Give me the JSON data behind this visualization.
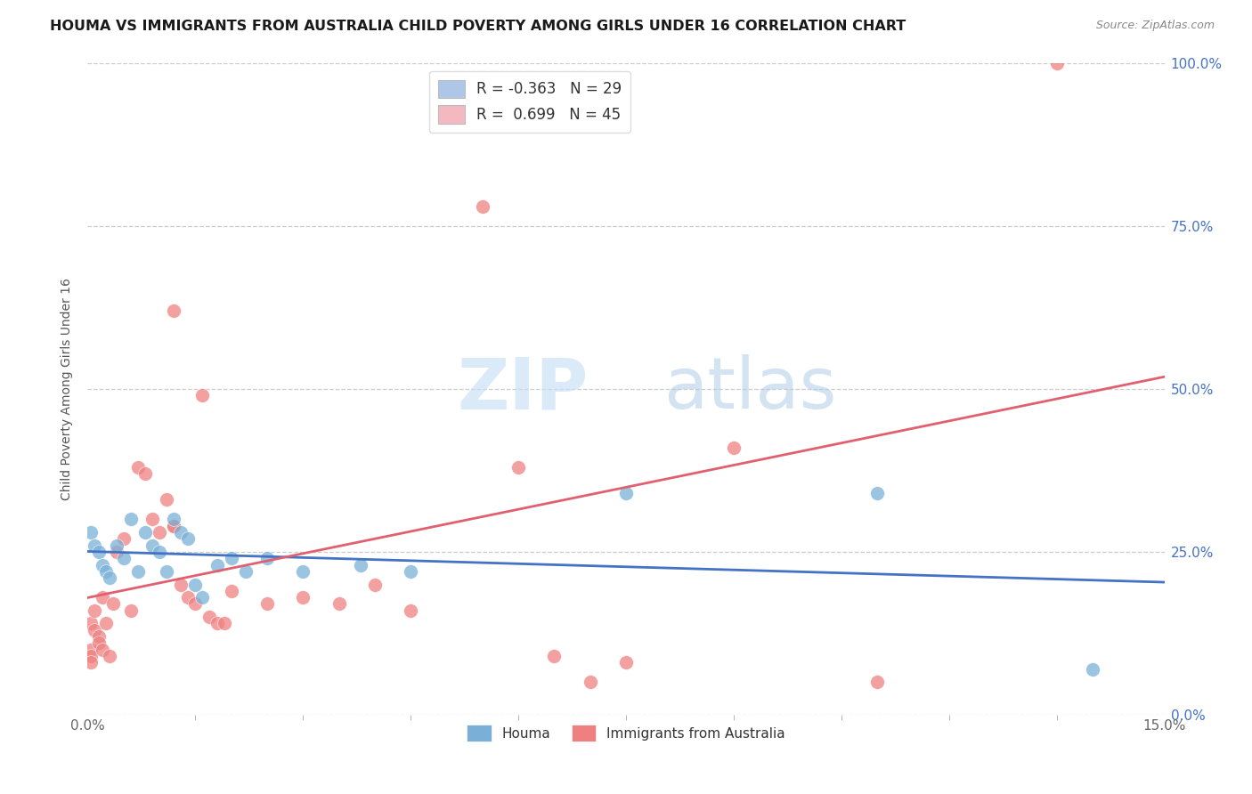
{
  "title": "HOUMA VS IMMIGRANTS FROM AUSTRALIA CHILD POVERTY AMONG GIRLS UNDER 16 CORRELATION CHART",
  "source": "Source: ZipAtlas.com",
  "ylabel": "Child Poverty Among Girls Under 16",
  "xmin": 0.0,
  "xmax": 15.0,
  "ymin": 0.0,
  "ymax": 100.0,
  "watermark_zip": "ZIP",
  "watermark_atlas": "atlas",
  "legend_entries": [
    {
      "label_r": "R = -0.363",
      "label_n": "N = 29",
      "color": "#aec6e8"
    },
    {
      "label_r": "R =  0.699",
      "label_n": "N = 45",
      "color": "#f4b8c1"
    }
  ],
  "houma_color": "#7ab0d8",
  "immigrants_color": "#f08080",
  "houma_line_color": "#4472c4",
  "immigrants_line_color": "#e06070",
  "houma_points": [
    [
      0.05,
      28.0
    ],
    [
      0.1,
      26.0
    ],
    [
      0.15,
      25.0
    ],
    [
      0.2,
      23.0
    ],
    [
      0.25,
      22.0
    ],
    [
      0.3,
      21.0
    ],
    [
      0.4,
      26.0
    ],
    [
      0.5,
      24.0
    ],
    [
      0.6,
      30.0
    ],
    [
      0.7,
      22.0
    ],
    [
      0.8,
      28.0
    ],
    [
      0.9,
      26.0
    ],
    [
      1.0,
      25.0
    ],
    [
      1.1,
      22.0
    ],
    [
      1.2,
      30.0
    ],
    [
      1.3,
      28.0
    ],
    [
      1.4,
      27.0
    ],
    [
      1.5,
      20.0
    ],
    [
      1.6,
      18.0
    ],
    [
      1.8,
      23.0
    ],
    [
      2.0,
      24.0
    ],
    [
      2.2,
      22.0
    ],
    [
      2.5,
      24.0
    ],
    [
      3.0,
      22.0
    ],
    [
      3.8,
      23.0
    ],
    [
      4.5,
      22.0
    ],
    [
      7.5,
      34.0
    ],
    [
      11.0,
      34.0
    ],
    [
      14.0,
      7.0
    ]
  ],
  "immigrants_points": [
    [
      0.05,
      10.0
    ],
    [
      0.05,
      9.0
    ],
    [
      0.05,
      8.0
    ],
    [
      0.05,
      14.0
    ],
    [
      0.1,
      13.0
    ],
    [
      0.1,
      16.0
    ],
    [
      0.15,
      12.0
    ],
    [
      0.15,
      11.0
    ],
    [
      0.2,
      18.0
    ],
    [
      0.2,
      10.0
    ],
    [
      0.25,
      14.0
    ],
    [
      0.3,
      9.0
    ],
    [
      0.35,
      17.0
    ],
    [
      0.4,
      25.0
    ],
    [
      0.5,
      27.0
    ],
    [
      0.6,
      16.0
    ],
    [
      0.7,
      38.0
    ],
    [
      0.8,
      37.0
    ],
    [
      0.9,
      30.0
    ],
    [
      1.0,
      28.0
    ],
    [
      1.1,
      33.0
    ],
    [
      1.2,
      29.0
    ],
    [
      1.2,
      29.0
    ],
    [
      1.2,
      62.0
    ],
    [
      1.3,
      20.0
    ],
    [
      1.4,
      18.0
    ],
    [
      1.5,
      17.0
    ],
    [
      1.6,
      49.0
    ],
    [
      1.7,
      15.0
    ],
    [
      1.8,
      14.0
    ],
    [
      1.9,
      14.0
    ],
    [
      2.0,
      19.0
    ],
    [
      2.5,
      17.0
    ],
    [
      3.0,
      18.0
    ],
    [
      3.5,
      17.0
    ],
    [
      4.0,
      20.0
    ],
    [
      4.5,
      16.0
    ],
    [
      5.5,
      78.0
    ],
    [
      6.0,
      38.0
    ],
    [
      6.5,
      9.0
    ],
    [
      7.0,
      5.0
    ],
    [
      7.5,
      8.0
    ],
    [
      9.0,
      41.0
    ],
    [
      11.0,
      5.0
    ],
    [
      13.5,
      100.0
    ]
  ],
  "grid_color": "#cccccc",
  "background_color": "#ffffff",
  "ytick_vals": [
    0,
    25,
    50,
    75,
    100
  ],
  "right_axis_color": "#4472c4"
}
